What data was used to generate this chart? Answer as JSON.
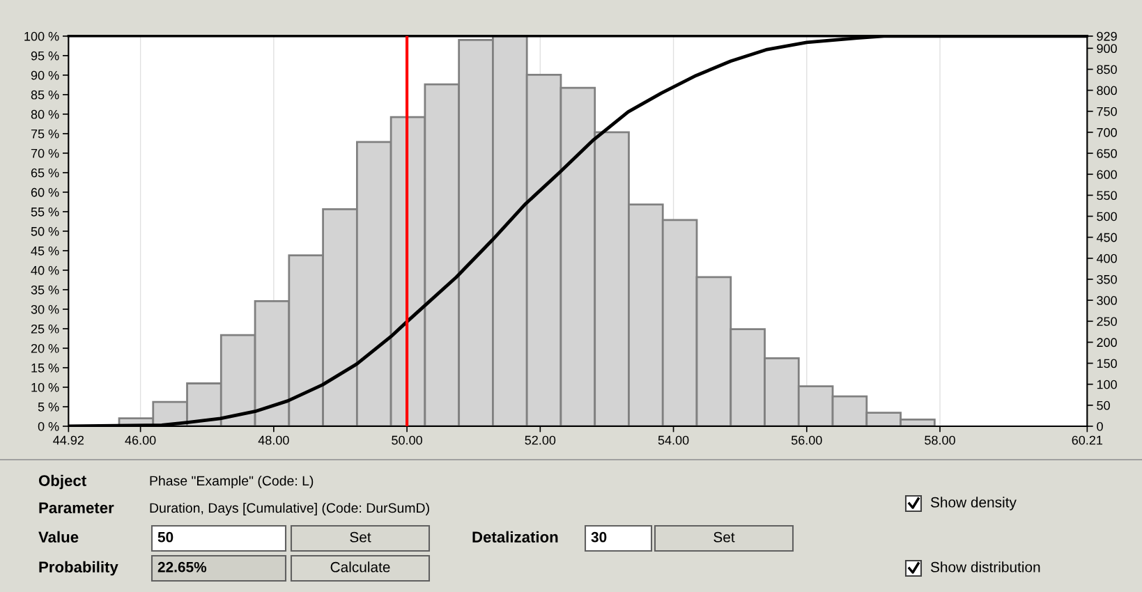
{
  "chart_data": {
    "type": "histogram",
    "bins": [
      45.68,
      46.19,
      46.7,
      47.21,
      47.72,
      48.23,
      48.74,
      49.25,
      49.76,
      50.27,
      50.78,
      51.29,
      51.8,
      52.31,
      52.82,
      53.33,
      53.84,
      54.35,
      54.86,
      55.37,
      55.88,
      56.39,
      56.9,
      57.41,
      57.92
    ],
    "series": [
      {
        "axis": "y2",
        "color": "#d3d3d3",
        "values": [
          19,
          58,
          102,
          217,
          298,
          407,
          517,
          677,
          736,
          814,
          920,
          929,
          837,
          806,
          700,
          528,
          491,
          355,
          231,
          162,
          95,
          71,
          32,
          16
        ]
      },
      {
        "type": "line",
        "axis": "y",
        "color": "#000000",
        "x": [
          44.92,
          46.32,
          46.72,
          47.2,
          47.72,
          48.21,
          48.73,
          49.25,
          49.76,
          50.0,
          50.74,
          51.28,
          51.78,
          52.3,
          52.8,
          53.32,
          53.82,
          54.34,
          54.86,
          55.39,
          56.0,
          56.76,
          57.16,
          60.21
        ],
        "values": [
          0,
          0.3,
          1,
          2,
          3.8,
          6.5,
          10.6,
          16,
          23,
          26.8,
          38.2,
          47.7,
          57,
          65.2,
          73.4,
          80.6,
          85.4,
          89.9,
          93.6,
          96.5,
          98.4,
          99.5,
          100,
          100
        ]
      }
    ],
    "xlim": [
      44.92,
      60.21
    ],
    "xticks": [
      {
        "value": 44.92,
        "label": "44.92"
      },
      {
        "value": 46,
        "label": "46.00"
      },
      {
        "value": 48,
        "label": "48.00"
      },
      {
        "value": 50,
        "label": "50.00"
      },
      {
        "value": 52,
        "label": "52.00"
      },
      {
        "value": 54,
        "label": "54.00"
      },
      {
        "value": 56,
        "label": "56.00"
      },
      {
        "value": 58,
        "label": "58.00"
      },
      {
        "value": 60.21,
        "label": "60.21"
      }
    ],
    "ylim": [
      0,
      100
    ],
    "yticks": [
      {
        "value": 0,
        "label": "0 %"
      },
      {
        "value": 5,
        "label": "5 %"
      },
      {
        "value": 10,
        "label": "10 %"
      },
      {
        "value": 15,
        "label": "15 %"
      },
      {
        "value": 20,
        "label": "20 %"
      },
      {
        "value": 25,
        "label": "25 %"
      },
      {
        "value": 30,
        "label": "30 %"
      },
      {
        "value": 35,
        "label": "35 %"
      },
      {
        "value": 40,
        "label": "40 %"
      },
      {
        "value": 45,
        "label": "45 %"
      },
      {
        "value": 50,
        "label": "50 %"
      },
      {
        "value": 55,
        "label": "55 %"
      },
      {
        "value": 60,
        "label": "60 %"
      },
      {
        "value": 65,
        "label": "65 %"
      },
      {
        "value": 70,
        "label": "70 %"
      },
      {
        "value": 75,
        "label": "75 %"
      },
      {
        "value": 80,
        "label": "80 %"
      },
      {
        "value": 85,
        "label": "85 %"
      },
      {
        "value": 90,
        "label": "90 %"
      },
      {
        "value": 95,
        "label": "95 %"
      },
      {
        "value": 100,
        "label": "100 %"
      }
    ],
    "y2lim": [
      0,
      929
    ],
    "y2ticks": [
      0,
      50,
      100,
      150,
      200,
      250,
      300,
      350,
      400,
      450,
      500,
      550,
      600,
      650,
      700,
      750,
      800,
      850,
      900,
      929
    ],
    "grid": "x",
    "ref_lines": [
      {
        "axis": "x",
        "value": 50,
        "color": "#ff0000"
      }
    ],
    "annotations": [
      "Object",
      "Phase \"Example\" (Code: L)",
      "Parameter",
      "Duration, Days [Cumulative] (Code: DurSumD)",
      "Value",
      "50",
      "Set",
      "Detalization",
      "30",
      "Set",
      "Probability",
      "22.65%",
      "Calculate",
      "Show density",
      "Show distribution"
    ]
  }
}
